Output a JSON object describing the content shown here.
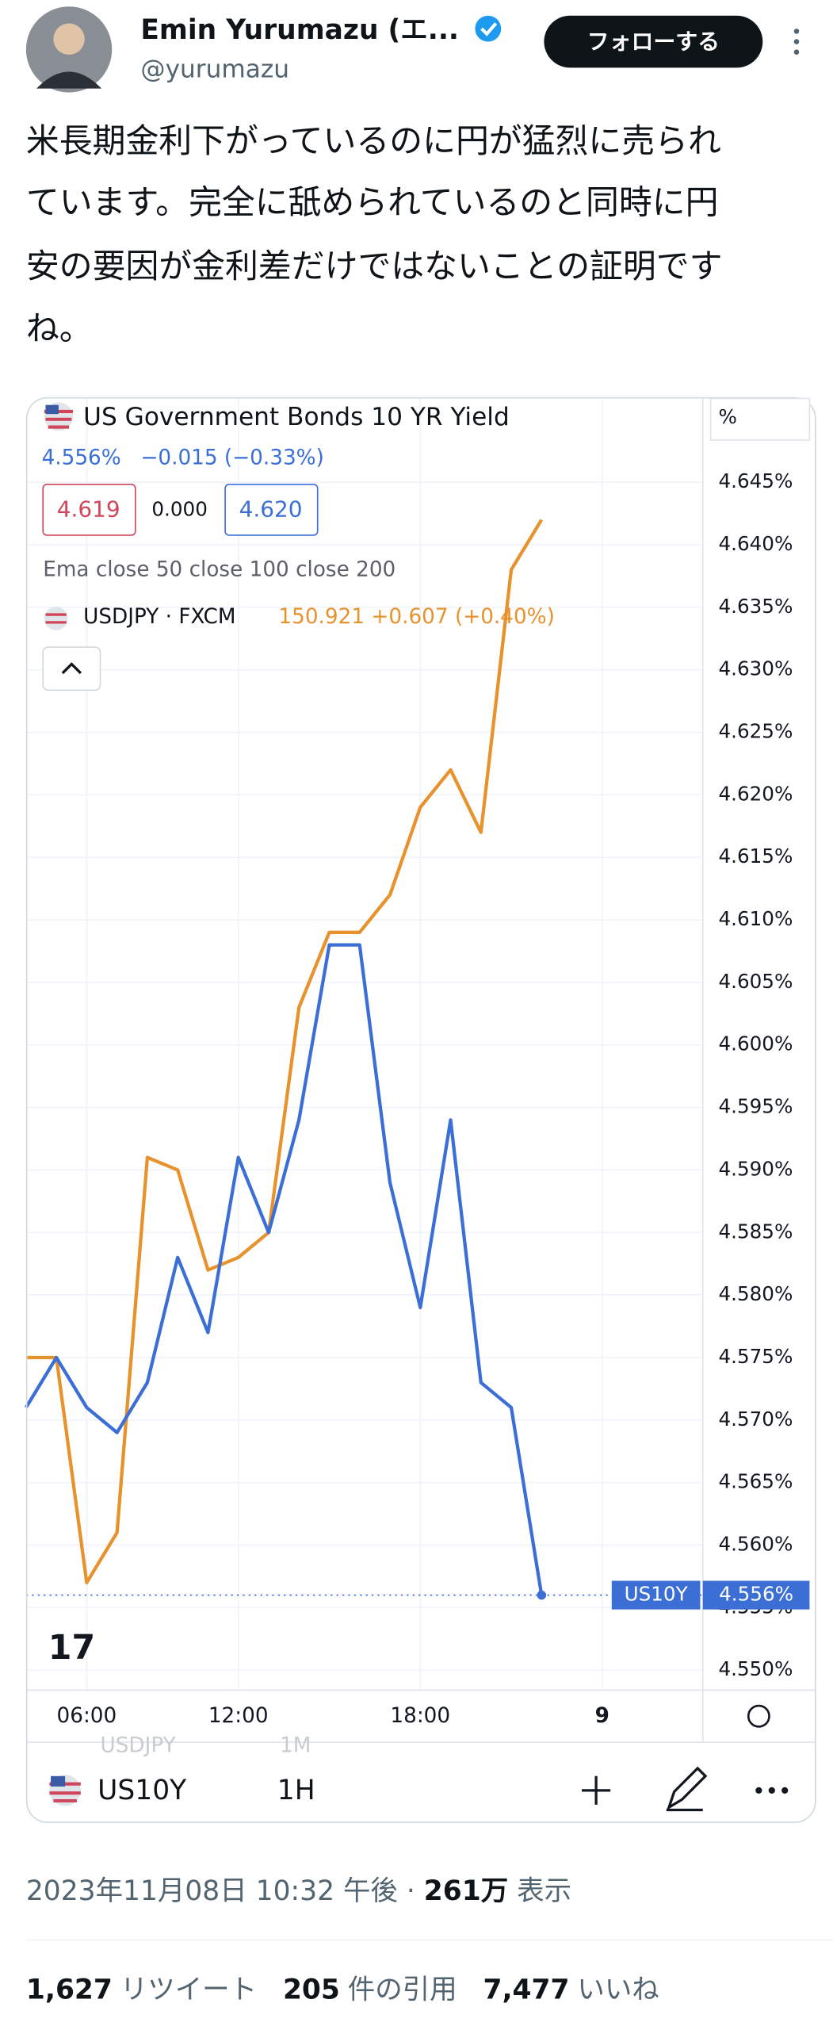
{
  "tweet": {
    "name": "Emin Yurumazu (エ...",
    "handle": "@yurumazu",
    "follow": "フォローする",
    "text": [
      "米長期金利下がっているのに円が猛烈に売られ",
      "ています。完全に舐められているのと同時に円",
      "安の要因が金利差だけではないことの証明です",
      "ね。"
    ],
    "timestamp": "2023年11月08日 10:32 午後 · ",
    "views": "261万",
    "views_label": " 表示",
    "retweets": "1,627",
    "retweets_label": "リツイート",
    "quotes": "205",
    "quotes_label": "件の引用",
    "likes": "7,477",
    "likes_label": "いいね"
  },
  "chart_data": {
    "type": "line",
    "title": "US Government Bonds 10 YR Yield",
    "quote": "4.556%",
    "change": "−0.015 (−0.33%)",
    "bid": "4.619",
    "spread": "0.000",
    "ask": "4.620",
    "indicators": "Ema close 50 close 100 close 200",
    "overlay_quote": "150.921 +0.607 (+0.40%)",
    "y_unit": "%",
    "ghost_symbol": "USDJPY",
    "ghost_interval": "1M",
    "interval": "1H",
    "categories": [
      null,
      null,
      "06:00",
      null,
      null,
      null,
      null,
      "12:00",
      null,
      null,
      null,
      null,
      null,
      "18:00",
      null,
      null,
      null,
      null,
      null,
      "9"
    ],
    "series": [
      {
        "name": "US10Y",
        "color": "#3b6fd6",
        "values": [
          4.571,
          4.575,
          4.571,
          4.569,
          4.573,
          4.583,
          4.577,
          4.591,
          4.585,
          4.594,
          4.608,
          4.608,
          4.589,
          4.579,
          4.594,
          4.573,
          4.571,
          4.556,
          null,
          null
        ],
        "value_labels": [
          null,
          null,
          null,
          null,
          null,
          null,
          null,
          null,
          null,
          null,
          null,
          null,
          null,
          null,
          null,
          null,
          null,
          "4.556%",
          null,
          null
        ]
      },
      {
        "name": "USDJPY · FXCM",
        "color": "#e8922e",
        "values": [
          4.575,
          4.575,
          4.557,
          4.561,
          4.591,
          4.59,
          4.582,
          4.583,
          4.585,
          4.603,
          4.609,
          4.609,
          4.612,
          4.619,
          4.622,
          4.617,
          4.638,
          4.642,
          null,
          null
        ]
      }
    ],
    "ylim": [
      4.5484,
      4.6517
    ],
    "yticks": [
      {
        "value": 4.55,
        "label": "4.550%"
      },
      {
        "value": 4.555,
        "label": "4.555%"
      },
      {
        "value": 4.56,
        "label": "4.560%"
      },
      {
        "value": 4.565,
        "label": "4.565%"
      },
      {
        "value": 4.57,
        "label": "4.570%"
      },
      {
        "value": 4.575,
        "label": "4.575%"
      },
      {
        "value": 4.58,
        "label": "4.580%"
      },
      {
        "value": 4.585,
        "label": "4.585%"
      },
      {
        "value": 4.59,
        "label": "4.590%"
      },
      {
        "value": 4.595,
        "label": "4.595%"
      },
      {
        "value": 4.6,
        "label": "4.600%"
      },
      {
        "value": 4.605,
        "label": "4.605%"
      },
      {
        "value": 4.61,
        "label": "4.610%"
      },
      {
        "value": 4.615,
        "label": "4.615%"
      },
      {
        "value": 4.62,
        "label": "4.620%"
      },
      {
        "value": 4.625,
        "label": "4.625%"
      },
      {
        "value": 4.63,
        "label": "4.630%"
      },
      {
        "value": 4.635,
        "label": "4.635%"
      },
      {
        "value": 4.64,
        "label": "4.640%"
      },
      {
        "value": 4.645,
        "label": "4.645%"
      }
    ],
    "grid": true
  }
}
